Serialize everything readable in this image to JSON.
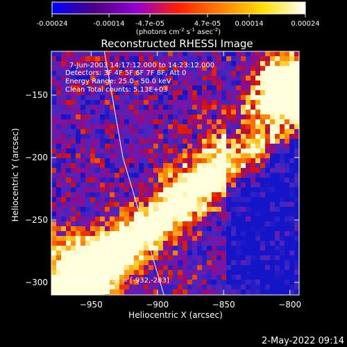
{
  "colorbar": {
    "ticks": [
      "-0.00024",
      "-0.00014",
      "-4.7e-05",
      "4.7e-05",
      "0.00014",
      "0.00024"
    ],
    "unit_label": "(photons cm",
    "unit_sup1": "-2",
    "unit_mid": " s",
    "unit_sup2": "-1",
    "unit_mid2": " asec",
    "unit_sup3": "-2",
    "unit_end": ")",
    "range": [
      -0.00024,
      0.00024
    ],
    "stops": [
      "#0000ff",
      "#4b0082",
      "#9400d3",
      "#ff2000",
      "#ff8000",
      "#ffe000",
      "#ffffff"
    ]
  },
  "chart_data": {
    "type": "heatmap",
    "title": "Reconstructed RHESSI Image",
    "xlabel": "Heliocentric X (arcsec)",
    "ylabel": "Heliocentric Y (arcsec)",
    "xlim": [
      -980,
      -793
    ],
    "ylim": [
      -310,
      -115
    ],
    "x_ticks": [
      -950,
      -900,
      -850,
      -800
    ],
    "y_ticks": [
      -150,
      -200,
      -250,
      -300
    ],
    "annotations": {
      "time": "7-Jun-2003 14:17:12.000 to 14:23:12.000",
      "detectors": "Detectors: 3F 4F 5F 6F 7F 8F, Att 0",
      "energy": "Energy Range: 25.0 - 50.0 keV",
      "clean": "Clean    Total counts: 5.13E+03",
      "peak": "Position of Peak = [-932,-283]"
    },
    "peak": [
      -932,
      -283
    ],
    "limb_curve": [
      [
        -940,
        -115
      ],
      [
        -926,
        -200
      ],
      [
        -912,
        -250
      ],
      [
        -895,
        -310
      ]
    ]
  },
  "footer": {
    "timestamp": "2-May-2022 09:14"
  }
}
